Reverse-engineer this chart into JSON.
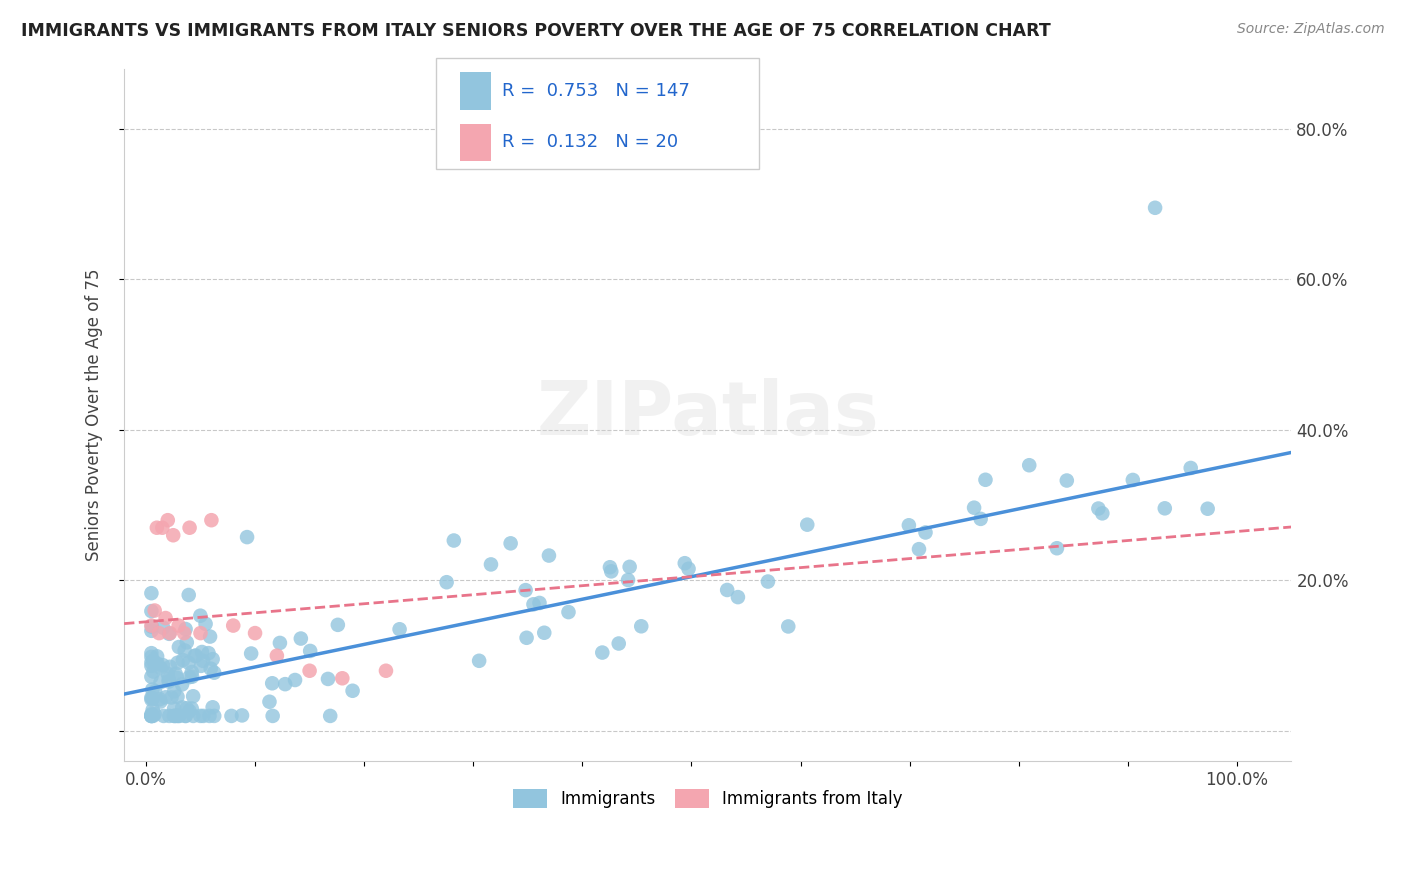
{
  "title": "IMMIGRANTS VS IMMIGRANTS FROM ITALY SENIORS POVERTY OVER THE AGE OF 75 CORRELATION CHART",
  "source": "Source: ZipAtlas.com",
  "ylabel": "Seniors Poverty Over the Age of 75",
  "R1": 0.753,
  "N1": 147,
  "R2": 0.132,
  "N2": 20,
  "color1": "#92C5DE",
  "color2": "#F4A6B0",
  "line1_color": "#4A90D9",
  "line2_color": "#E8748A",
  "legend1_label": "Immigrants",
  "legend2_label": "Immigrants from Italy",
  "line1_slope": 0.3,
  "line1_intercept": 0.055,
  "line2_slope": 0.12,
  "line2_intercept": 0.145,
  "watermark": "ZIPatlas",
  "xlim": [
    -0.02,
    1.05
  ],
  "ylim": [
    -0.04,
    0.88
  ],
  "ytick_positions": [
    0.0,
    0.2,
    0.4,
    0.6,
    0.8
  ],
  "yticklabels_right": [
    "",
    "20.0%",
    "40.0%",
    "60.0%",
    "80.0%"
  ],
  "xtick_positions": [
    0.0,
    0.5,
    1.0
  ],
  "xticklabels": [
    "0.0%",
    "",
    "100.0%"
  ]
}
